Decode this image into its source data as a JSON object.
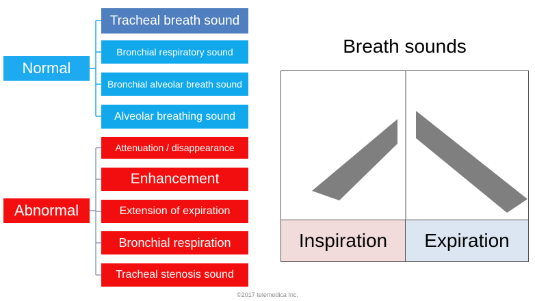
{
  "title": "Breath sounds",
  "normal": {
    "label": "Normal",
    "items": [
      "Tracheal breath sound",
      "Bronchial respiratory sound",
      "Bronchial alveolar breath sound",
      "Alveolar breathing sound"
    ]
  },
  "abnormal": {
    "label": "Abnormal",
    "items": [
      "Attenuation / disappearance",
      "Enhancement",
      "Extension of expiration",
      "Bronchial respiration",
      "Tracheal stenosis sound"
    ]
  },
  "phases": {
    "inspiration": "Inspiration",
    "expiration": "Expiration"
  },
  "copyright": "©2017 telemedica Inc.",
  "colors": {
    "normal": "#1eaaf1",
    "abnormal": "#f30f0f",
    "tracheal": "#4f7fbe",
    "inspiration_bg": "#f2dcdb",
    "expiration_bg": "#dce6f2",
    "shape": "#7f7f7f"
  }
}
